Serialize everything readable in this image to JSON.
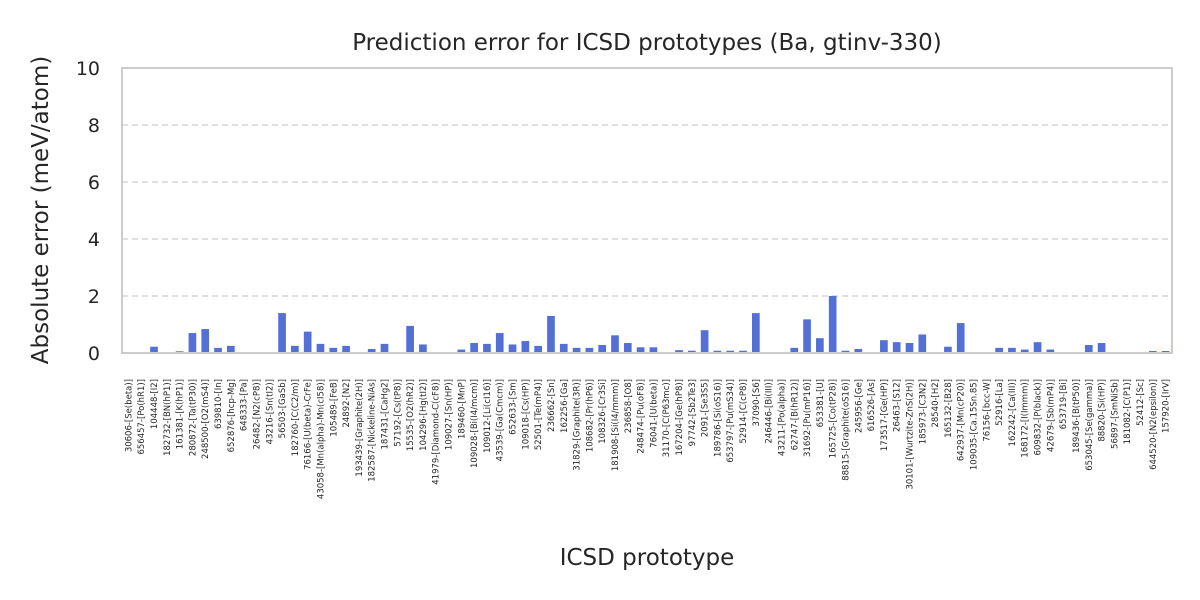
{
  "chart_data": {
    "type": "bar",
    "title": "Prediction error for ICSD prototypes (Ba, gtinv-330)",
    "xlabel": "ICSD prototype",
    "ylabel": "Absolute error (meV/atom)",
    "ylim": [
      0,
      10
    ],
    "yticks": [
      0,
      2,
      4,
      6,
      8,
      10
    ],
    "grid": true,
    "bar_color": "#5470d6",
    "categories": [
      "30606-[Se(beta)]",
      "656457-[Po(hR1)]",
      "104448-[I2]",
      "182732-[BN(hP1)]",
      "161381-[K(hP1)]",
      "280872-[Ta(tP30)]",
      "248500-[O2(mS4)]",
      "639810-[In]",
      "652876-[hcp-Mg]",
      "648333-[Pa]",
      "26482-[N2(cP8)]",
      "43216-[Sn(tI2)]",
      "56503-[GaSb]",
      "182760-[C(C2/m)]",
      "76166-[U(beta)-CrFe]",
      "43058-[Mn(alpha)-Mn(cI58)]",
      "105489-[FeB]",
      "24892-[N2]",
      "193439-[Graphite(2H)]",
      "182587-[Nickeline-NiAs]",
      "187431-[CaHg2]",
      "57192-[Cs(tP8)]",
      "15535-[O2(hR2)]",
      "104296-[Hg(tI2)]",
      "41979-[Diamond-C(cF8)]",
      "109027-[Sn(HP)]",
      "189460-[MnP]",
      "109028-[Bi(I4/mcm)]",
      "109012-[Li(cI16)]",
      "43539-[Ga(Cmcm)]",
      "652633-[Sm]",
      "109018-[Cs(HP)]",
      "52501-[Te(mP4)]",
      "236662-[Sn]",
      "162256-[Ga]",
      "31829-[Graphite(3R)]",
      "108682-[Pr(hP6)]",
      "108326-[Cr3Si]",
      "181908-[Si(I4/mmm)]",
      "236858-[O8]",
      "248474-[Pu(oF8)]",
      "76041-[U(beta)]",
      "31170-[C(P63mc)]",
      "167204-[Ge(hP8)]",
      "97742-[Sb2Te3]",
      "2091-[Se3S5]",
      "189786-[Si(oS16)]",
      "653797-[Pu(mS34)]",
      "52914-[C(cP8)]",
      "37090-[S6]",
      "246446-[Bi(III)]",
      "43211-[Po(alpha)]",
      "62747-[B(hR12)]",
      "31692-[Pu(mP16)]",
      "653381-[U]",
      "165725-[Co(tP28)]",
      "88815-[Graphite(oS16)]",
      "245956-[Ge]",
      "616526-[As]",
      "173517-[Ge(HP)]",
      "26463-[S12]",
      "30101-[Wurtzite-ZnS(2H)]",
      "185973-[C3N2]",
      "28540-[H2]",
      "165132-[B28]",
      "642937-[Mn(cP20)]",
      "109035-[Ca.15Sn.85]",
      "76156-[bcc-W]",
      "52916-[La]",
      "162242-[Ca(III)]",
      "168172-[I(Immm)]",
      "609832-[P(black)]",
      "42679-[Sb(mP4)]",
      "653719-[Bi]",
      "189436-[B(tP50)]",
      "653045-[Se(gamma)]",
      "88820-[Si(HP)]",
      "56897-[SmNiSb]",
      "181082-[C(P1)]",
      "52412-[Sc]",
      "644520-[N2(epsilon)]",
      "157920-[IrV]"
    ],
    "values": [
      0.0,
      0.0,
      0.22,
      0.0,
      0.06,
      0.7,
      0.84,
      0.18,
      0.25,
      0.0,
      0.0,
      0.0,
      1.4,
      0.25,
      0.75,
      0.32,
      0.18,
      0.25,
      0.0,
      0.14,
      0.32,
      0.0,
      0.95,
      0.3,
      0.0,
      0.0,
      0.12,
      0.35,
      0.32,
      0.7,
      0.3,
      0.42,
      0.25,
      1.3,
      0.32,
      0.18,
      0.18,
      0.28,
      0.62,
      0.35,
      0.2,
      0.2,
      0.0,
      0.1,
      0.08,
      0.8,
      0.08,
      0.08,
      0.08,
      1.4,
      0.0,
      0.0,
      0.18,
      1.18,
      0.52,
      2.0,
      0.08,
      0.14,
      0.0,
      0.45,
      0.38,
      0.35,
      0.65,
      0.0,
      0.22,
      1.05,
      0.0,
      0.0,
      0.18,
      0.18,
      0.12,
      0.38,
      0.12,
      0.0,
      0.0,
      0.28,
      0.35,
      0.0,
      0.0,
      0.0,
      0.07,
      0.07
    ]
  }
}
